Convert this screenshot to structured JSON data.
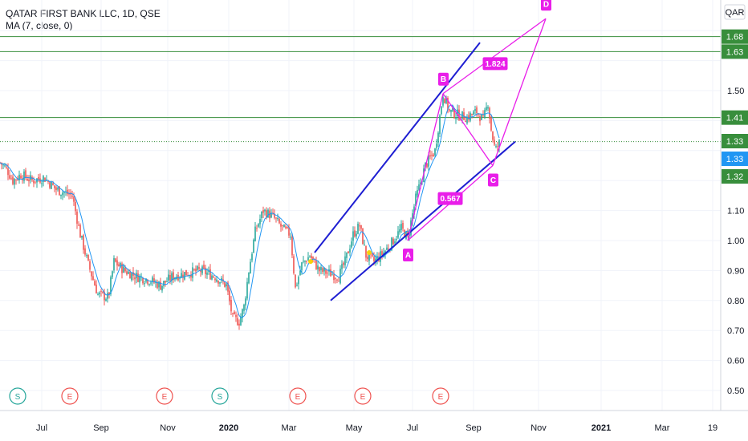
{
  "header": {
    "symbol_line": "QATAR FIRST BANK LLC, 1D, QSE",
    "indicator_line": "MA (7, close, 0)",
    "currency": "QAR"
  },
  "colors": {
    "candle_up": "#26a69a",
    "candle_down": "#ef5350",
    "ma": "#2196f3",
    "trend": "#1e1ed2",
    "pattern": "#e91ee9",
    "hline": "#388e3c",
    "last_price": "#2196f3",
    "earnings": "#ef5350",
    "split": "#26a69a"
  },
  "chart_data": {
    "type": "candlestick",
    "y_axis": {
      "ticks": [
        "0.50",
        "0.60",
        "0.70",
        "0.80",
        "0.90",
        "1.00",
        "1.10",
        "1.50"
      ],
      "range": [
        0.45,
        1.75
      ]
    },
    "x_axis": {
      "ticks": [
        "Jul",
        "Sep",
        "Nov",
        "2020",
        "Mar",
        "May",
        "Jul",
        "Sep",
        "Nov",
        "2021",
        "Mar",
        "19"
      ]
    },
    "price_path": [
      {
        "t": 0,
        "p": 1.26
      },
      {
        "t": 8,
        "p": 1.24
      },
      {
        "t": 16,
        "p": 1.2
      },
      {
        "t": 26,
        "p": 1.22
      },
      {
        "t": 40,
        "p": 1.2
      },
      {
        "t": 55,
        "p": 1.21
      },
      {
        "t": 70,
        "p": 1.17
      },
      {
        "t": 90,
        "p": 1.15
      },
      {
        "t": 100,
        "p": 1.02
      },
      {
        "t": 110,
        "p": 0.92
      },
      {
        "t": 122,
        "p": 0.82
      },
      {
        "t": 135,
        "p": 0.81
      },
      {
        "t": 142,
        "p": 0.93
      },
      {
        "t": 155,
        "p": 0.9
      },
      {
        "t": 170,
        "p": 0.88
      },
      {
        "t": 185,
        "p": 0.87
      },
      {
        "t": 200,
        "p": 0.85
      },
      {
        "t": 215,
        "p": 0.88
      },
      {
        "t": 230,
        "p": 0.89
      },
      {
        "t": 250,
        "p": 0.9
      },
      {
        "t": 268,
        "p": 0.88
      },
      {
        "t": 282,
        "p": 0.85
      },
      {
        "t": 290,
        "p": 0.74
      },
      {
        "t": 298,
        "p": 0.73
      },
      {
        "t": 304,
        "p": 0.78
      },
      {
        "t": 310,
        "p": 0.9
      },
      {
        "t": 318,
        "p": 1.03
      },
      {
        "t": 328,
        "p": 1.1
      },
      {
        "t": 340,
        "p": 1.08
      },
      {
        "t": 352,
        "p": 1.04
      },
      {
        "t": 362,
        "p": 1.02
      },
      {
        "t": 368,
        "p": 0.84
      },
      {
        "t": 376,
        "p": 0.92
      },
      {
        "t": 386,
        "p": 0.95
      },
      {
        "t": 398,
        "p": 0.9
      },
      {
        "t": 412,
        "p": 0.89
      },
      {
        "t": 422,
        "p": 0.88
      },
      {
        "t": 430,
        "p": 0.93
      },
      {
        "t": 440,
        "p": 1.02
      },
      {
        "t": 448,
        "p": 1.05
      },
      {
        "t": 456,
        "p": 0.95
      },
      {
        "t": 466,
        "p": 0.93
      },
      {
        "t": 478,
        "p": 0.96
      },
      {
        "t": 490,
        "p": 1.0
      },
      {
        "t": 500,
        "p": 1.04
      },
      {
        "t": 508,
        "p": 1.01
      },
      {
        "t": 518,
        "p": 1.14
      },
      {
        "t": 530,
        "p": 1.25
      },
      {
        "t": 542,
        "p": 1.3
      },
      {
        "t": 552,
        "p": 1.49
      },
      {
        "t": 560,
        "p": 1.43
      },
      {
        "t": 570,
        "p": 1.42
      },
      {
        "t": 582,
        "p": 1.41
      },
      {
        "t": 594,
        "p": 1.43
      },
      {
        "t": 602,
        "p": 1.4
      },
      {
        "t": 608,
        "p": 1.46
      },
      {
        "t": 612,
        "p": 1.37
      },
      {
        "t": 617,
        "p": 1.3
      },
      {
        "t": 623,
        "p": 1.33
      }
    ],
    "horizontal_levels": [
      {
        "value": 1.68,
        "label": "1.68",
        "style": "solid"
      },
      {
        "value": 1.63,
        "label": "1.63",
        "style": "solid"
      },
      {
        "value": 1.41,
        "label": "1.41",
        "style": "solid"
      },
      {
        "value": 1.33,
        "label": "1.33",
        "style": "dotted"
      }
    ],
    "price_labels": [
      {
        "value": 1.33,
        "label": "1.33",
        "kind": "level"
      },
      {
        "value": 1.31,
        "label": "1.33",
        "kind": "last"
      },
      {
        "value": 1.29,
        "label": "1.32",
        "kind": "level-low"
      }
    ],
    "trend_channel": [
      {
        "from": {
          "t": 392,
          "p": 0.96
        },
        "to": {
          "t": 598,
          "p": 1.66
        }
      },
      {
        "from": {
          "t": 412,
          "p": 0.8
        },
        "to": {
          "t": 642,
          "p": 1.33
        }
      }
    ],
    "abcd_pattern": {
      "points": [
        {
          "name": "A",
          "t": 508,
          "p": 1.0
        },
        {
          "name": "B",
          "t": 552,
          "p": 1.49
        },
        {
          "name": "C",
          "t": 614,
          "p": 1.25
        },
        {
          "name": "D",
          "t": 680,
          "p": 1.74
        }
      ],
      "ratios": [
        {
          "label": "0.567",
          "t": 561,
          "p": 1.14
        },
        {
          "label": "1.824",
          "t": 617,
          "p": 1.59
        }
      ]
    },
    "events": [
      {
        "t": 22,
        "label": "S",
        "kind": "split"
      },
      {
        "t": 87,
        "label": "E",
        "kind": "earnings"
      },
      {
        "t": 205,
        "label": "E",
        "kind": "earnings"
      },
      {
        "t": 274,
        "label": "S",
        "kind": "split"
      },
      {
        "t": 371,
        "label": "E",
        "kind": "earnings"
      },
      {
        "t": 452,
        "label": "E",
        "kind": "earnings"
      },
      {
        "t": 549,
        "label": "E",
        "kind": "earnings"
      }
    ],
    "markers": [
      {
        "t": 387,
        "p": 0.93
      },
      {
        "t": 460,
        "p": 0.96
      }
    ]
  }
}
